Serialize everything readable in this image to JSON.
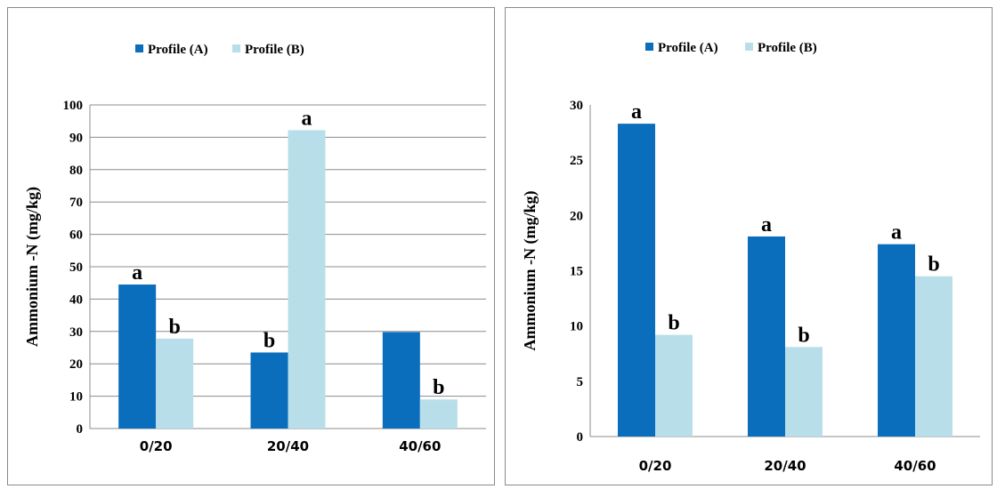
{
  "colors": {
    "profile_a": "#0a6ebd",
    "profile_b": "#b8dfe9",
    "grid": "#8c8c8c"
  },
  "chart_data": [
    {
      "type": "bar",
      "title": "",
      "xlabel": "",
      "ylabel": "Ammonium -N (mg/kg)",
      "categories": [
        "0/20",
        "20/40",
        "40/60"
      ],
      "ylim": [
        0,
        100
      ],
      "yticks": [
        0,
        10,
        20,
        30,
        40,
        50,
        60,
        70,
        80,
        90,
        100
      ],
      "grid": true,
      "legend_position": "top",
      "series": [
        {
          "name": "Profile (A)",
          "color": "#0a6ebd",
          "values": [
            44.5,
            23.5,
            29.8
          ],
          "labels": [
            "a",
            "b",
            ""
          ]
        },
        {
          "name": "Profile (B)",
          "color": "#b8dfe9",
          "values": [
            27.8,
            92.2,
            9.0
          ],
          "labels": [
            "b",
            "a",
            "b"
          ]
        }
      ]
    },
    {
      "type": "bar",
      "title": "",
      "xlabel": "",
      "ylabel": "Ammonium -N (mg/kg)",
      "categories": [
        "0/20",
        "20/40",
        "40/60"
      ],
      "ylim": [
        0,
        30
      ],
      "yticks": [
        0,
        5,
        10,
        15,
        20,
        25,
        30
      ],
      "grid": false,
      "legend_position": "top",
      "series": [
        {
          "name": "Profile (A)",
          "color": "#0a6ebd",
          "values": [
            28.3,
            18.1,
            17.4
          ],
          "labels": [
            "a",
            "a",
            "a"
          ]
        },
        {
          "name": "Profile (B)",
          "color": "#b8dfe9",
          "values": [
            9.2,
            8.1,
            14.5
          ],
          "labels": [
            "b",
            "b",
            "b"
          ]
        }
      ]
    }
  ]
}
